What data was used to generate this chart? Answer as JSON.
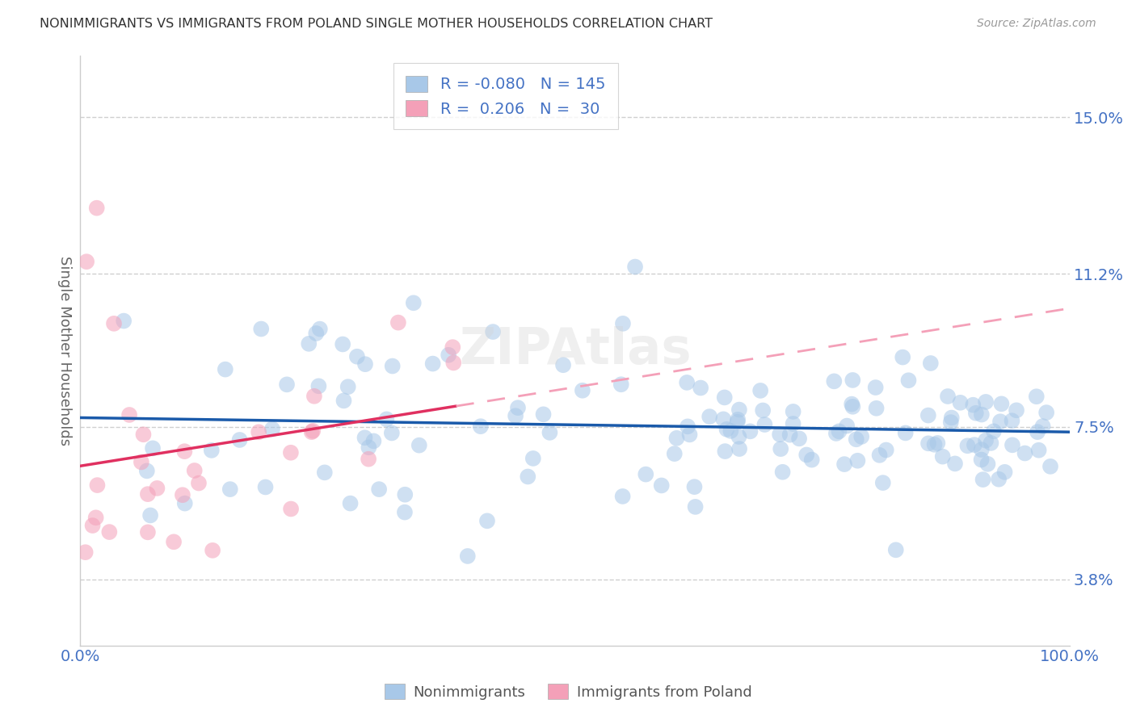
{
  "title": "NONIMMIGRANTS VS IMMIGRANTS FROM POLAND SINGLE MOTHER HOUSEHOLDS CORRELATION CHART",
  "source": "Source: ZipAtlas.com",
  "ylabel": "Single Mother Households",
  "yticks": [
    3.8,
    7.5,
    11.2,
    15.0
  ],
  "ytick_labels": [
    "3.8%",
    "7.5%",
    "11.2%",
    "15.0%"
  ],
  "xmin": 0.0,
  "xmax": 1.0,
  "ymin": 2.2,
  "ymax": 16.5,
  "legend_blue_R": "-0.080",
  "legend_blue_N": "145",
  "legend_pink_R": "0.206",
  "legend_pink_N": "30",
  "blue_color": "#a8c8e8",
  "pink_color": "#f4a0b8",
  "blue_line_color": "#1a5aaa",
  "pink_line_solid_color": "#e03060",
  "pink_line_dash_color": "#f4a0b8",
  "axis_label_color": "#4472c4",
  "grid_color": "#d0d0d0",
  "background_color": "#ffffff",
  "marker_size": 200,
  "marker_alpha": 0.55
}
